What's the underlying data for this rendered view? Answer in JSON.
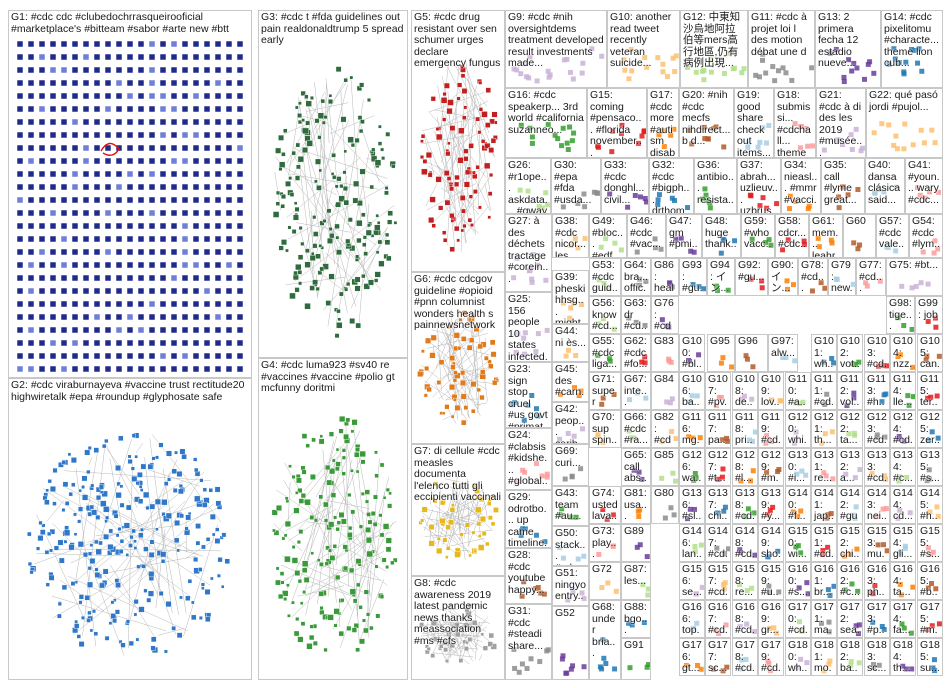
{
  "colors": {
    "G1": "#1f2a8a",
    "G2": "#2f77c8",
    "G3": "#2f6b3c",
    "G4": "#3a9a3a",
    "G5": "#c41f1f",
    "G6": "#e07a1a",
    "G7": "#e6b81e",
    "G8": "#a0a0a0",
    "edge": "#b8b8b8",
    "accent": "#e01010"
  },
  "groups": [
    {
      "id": "G1",
      "label": "G1: #cdc cdc #clubedochrrasqueirooficial #marketplace's #bitteam #sabor #arte new #btt"
    },
    {
      "id": "G2",
      "label": "G2: #cdc viraburnayeva #vaccine trust rectitude20 highwiretalk #epa #roundup #glyphosate safe"
    },
    {
      "id": "G3",
      "label": "G3: #cdc t #fda guidelines out pain realdonaldtrump 5 spread early"
    },
    {
      "id": "G4",
      "label": "G4: #cdc luma923 #sv40 re #vaccines #vaccine #polio gt mcfunny doritmi"
    },
    {
      "id": "G5",
      "label": "G5: #cdc drug resistant over sen schumer urges declare emergency fungus"
    },
    {
      "id": "G6",
      "label": "G6: #cdc cdcgov guideline #opioid #pnn columnist wonders health s painnewsnetwork"
    },
    {
      "id": "G7",
      "label": "G7: di cellule #cdc measles documenta l'elenco tutti gli eccipienti vaccinali"
    },
    {
      "id": "G8",
      "label": "G8: #cdc awareness 2019 latest pandemic news thanks meassociation #ms #cfs"
    },
    {
      "id": "G9",
      "label": "G9: #cdc #nih oversightdems treatment developed result investments made..."
    },
    {
      "id": "G10",
      "label": "G10: another read tweet recently veteran suicide..."
    },
    {
      "id": "G12",
      "label": "G12: 中東知 沙烏地阿拉 伯等mers高 行地區,仍有 病例出現..."
    },
    {
      "id": "G11",
      "label": "G11: #cdc à projet loi l des motion débat une d"
    },
    {
      "id": "G13",
      "label": "G13: 2 primera fecha 12 estadio nueve..."
    },
    {
      "id": "G14",
      "label": "G14: #cdc pixelitomu #characte... theme lion cub..."
    },
    {
      "id": "G16",
      "label": "G16: #cdc speakerp... 3rd world #california suzanneo..."
    },
    {
      "id": "G15",
      "label": "G15: coming #pensaco... #florida november..."
    },
    {
      "id": "G17",
      "label": "G17: #cdc more #autism disability #disabilit..."
    },
    {
      "id": "G20",
      "label": "G20: #nih #cdc mecfs nihdirect... b d..."
    },
    {
      "id": "G19",
      "label": "G19: good share check out items..."
    },
    {
      "id": "G18",
      "label": "G18: submissi... #cdchall... theme 2019..."
    },
    {
      "id": "G21",
      "label": "G21: #cdc à di des les 2019 #musée..."
    },
    {
      "id": "G22",
      "label": "G22: qué pasó jordi #pujol..."
    },
    {
      "id": "G26",
      "label": "G26: #r1ope... askdata... #gway #cdc..."
    },
    {
      "id": "G30",
      "label": "G30: #epa #fda #usda..."
    },
    {
      "id": "G33",
      "label": "G33: #cdc donghl... civil..."
    },
    {
      "id": "G32",
      "label": "G32: #cdc #bigph... drthom..."
    },
    {
      "id": "G36",
      "label": "G36: antibio... resista... takes..."
    },
    {
      "id": "G37",
      "label": "G37: abrah... uzlieuv... uzbrus..."
    },
    {
      "id": "G34",
      "label": "G34: nieasl... #mmr #vacci..."
    },
    {
      "id": "G35",
      "label": "G35: call #lyme great..."
    },
    {
      "id": "G40",
      "label": "G40: dansa clásica said..."
    },
    {
      "id": "G41",
      "label": "G41: #youn... wary #cdc..."
    },
    {
      "id": "G27",
      "label": "G27: à des déchets tractage #corein..."
    },
    {
      "id": "G38",
      "label": "G38: #cdc nicor... les..."
    },
    {
      "id": "G49",
      "label": "G49: #bloc... #edf..."
    },
    {
      "id": "G46",
      "label": "G46: #cdc #vac..."
    },
    {
      "id": "G47",
      "label": "G47: gm #pmi..."
    },
    {
      "id": "G48",
      "label": "G48: huge thank..."
    },
    {
      "id": "G59",
      "label": "G59: #who vacc..."
    },
    {
      "id": "G58",
      "label": "G58: cdcr... #cdc..."
    },
    {
      "id": "G61",
      "label": "G61: mem... leahr..."
    },
    {
      "id": "G60",
      "label": "G60"
    },
    {
      "id": "G57",
      "label": "G57: #cdc vale..."
    },
    {
      "id": "G54",
      "label": "G54: #cdc #lym..."
    },
    {
      "id": "G25",
      "label": "G25: 156 people 10 states infected..."
    },
    {
      "id": "G39",
      "label": "G39: pheski hhsg... might..."
    },
    {
      "id": "G53",
      "label": "G53: #cdc guid..."
    },
    {
      "id": "G64",
      "label": "G64: bra... offic..."
    },
    {
      "id": "G86",
      "label": "G86: heal..."
    },
    {
      "id": "G93",
      "label": "G93: #gu..."
    },
    {
      "id": "G94",
      "label": "G94: イン..."
    },
    {
      "id": "G92",
      "label": "G92: #gu..."
    },
    {
      "id": "G90",
      "label": "G90: イン..."
    },
    {
      "id": "G78",
      "label": "G78: #cd..."
    },
    {
      "id": "G79",
      "label": "G79: new..."
    },
    {
      "id": "G77",
      "label": "G77: #cd..."
    },
    {
      "id": "G75",
      "label": "G75: #bt..."
    },
    {
      "id": "G44",
      "label": "G44: ni ès..."
    },
    {
      "id": "G56",
      "label": "G56: know #cd..."
    },
    {
      "id": "G63",
      "label": "G63: dr #cd..."
    },
    {
      "id": "G76",
      "label": "G76: #cdc spa..."
    },
    {
      "id": "G23",
      "label": "G23: sign stop cruel #us govt #primat..."
    },
    {
      "id": "G55",
      "label": "G55: #cdc liga..."
    },
    {
      "id": "G62",
      "label": "G62: #cdc #fo..."
    },
    {
      "id": "G45",
      "label": "G45: des #carn..."
    },
    {
      "id": "G71",
      "label": "G71: super bug..."
    },
    {
      "id": "G67",
      "label": "G67: inte... com..."
    },
    {
      "id": "G24",
      "label": "G24: #clabsis #kidshe... #global..."
    },
    {
      "id": "G42",
      "label": "G42: peop... carib..."
    },
    {
      "id": "G70",
      "label": "G70: sup spin..."
    },
    {
      "id": "G66",
      "label": "G66: #cdc #ra..."
    },
    {
      "id": "G69",
      "label": "G69: curi..."
    },
    {
      "id": "G65",
      "label": "G65: call abs..."
    },
    {
      "id": "G29",
      "label": "G29: odrotbo... up came timeline..."
    },
    {
      "id": "G43",
      "label": "G43: team #au..."
    },
    {
      "id": "G74",
      "label": "G74: usted lava..."
    },
    {
      "id": "G81",
      "label": "G81: usa..."
    },
    {
      "id": "G28",
      "label": "G28: #cdc youtube happy..."
    },
    {
      "id": "G50",
      "label": "G50: stack... #cdc..."
    },
    {
      "id": "G73",
      "label": "G73: play... cour..."
    },
    {
      "id": "G51",
      "label": "G51: ningyo entry..."
    },
    {
      "id": "G72",
      "label": "G72"
    },
    {
      "id": "G87",
      "label": "G87: les..."
    },
    {
      "id": "G31",
      "label": "G31: #cdc #steadi share..."
    },
    {
      "id": "G52",
      "label": "G52"
    },
    {
      "id": "G68",
      "label": "G68: under bria..."
    },
    {
      "id": "G98",
      "label": "G98: tige..."
    },
    {
      "id": "G99",
      "label": "G99: job"
    },
    {
      "id": "G95",
      "label": "G95"
    },
    {
      "id": "G96",
      "label": "G96"
    },
    {
      "id": "G97",
      "label": "G97: alw..."
    },
    {
      "id": "G83",
      "label": "G83"
    },
    {
      "id": "G84",
      "label": "G84"
    },
    {
      "id": "G82",
      "label": "G82: #cdc"
    },
    {
      "id": "G85",
      "label": "G85"
    },
    {
      "id": "G80",
      "label": "G80"
    },
    {
      "id": "G89",
      "label": "G89"
    },
    {
      "id": "G88",
      "label": "G88: bgo..."
    },
    {
      "id": "G91",
      "label": "G91"
    }
  ],
  "small_cells": [
    "#bl...",
    "wh...",
    "vot...",
    "#cd...",
    "nzz...",
    "can...",
    "ba...",
    "#pv...",
    "de...",
    "lov...",
    "#a...",
    "#cd...",
    "vol...",
    "#h...",
    "lle...",
    "ter...",
    "mg...",
    "pa...",
    "pri...",
    "#cd...",
    "whi...",
    "th...",
    "ta...",
    "#cd...",
    "#cd...",
    "zer...",
    "wa...",
    "#t...",
    "#l...",
    "#m...",
    "#i...",
    "re...",
    "a...",
    "#cd...",
    "#c...",
    "#s...",
    "#sl...",
    "chi...",
    "#cd...",
    "#y...",
    "#f...",
    "jap...",
    "#gu...",
    "nei...",
    "cd...",
    "#h...",
    "lan...",
    "#cd...",
    "#cd...",
    "sho...",
    "wi...",
    "#cd...",
    "chi...",
    "mu...",
    "gli...",
    "#s...",
    "se...",
    "#cd...",
    "re...",
    "#u...",
    "#s...",
    "br...",
    "#c...",
    "ph...",
    "ta...",
    "#b...",
    "top...",
    "#cd...",
    "#cd...",
    "gr...",
    "#cd...",
    "ma...",
    "sea...",
    "#p...",
    "fa...",
    "#m...",
    "gt...",
    "sc...",
    "#cd...",
    "#cd...",
    "wh...",
    "mo...",
    "ba...",
    "sc...",
    "th...",
    "su...",
    "#cd...",
    "hm...",
    "#cd...",
    "#cd...",
    "co...",
    "jis...",
    "#d...",
    "cd...",
    "#ie...",
    "#s...",
    "per",
    "bi...",
    "#cd...",
    "#cd...",
    "lea...",
    "a...",
    "#l...",
    "#s...",
    "ch...",
    "vo...",
    "hel...",
    "nr...",
    "#cd...",
    "#s...",
    "re...",
    "#r...",
    "#n...",
    "#c...",
    "#s...",
    "d..."
  ]
}
